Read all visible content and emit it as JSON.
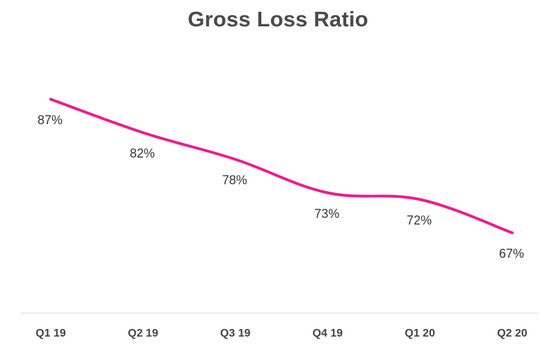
{
  "chart_data": {
    "type": "line",
    "title": "Gross Loss Ratio",
    "xlabel": "",
    "ylabel": "",
    "categories": [
      "Q1 19",
      "Q2 19",
      "Q3 19",
      "Q4 19",
      "Q1 20",
      "Q2 20"
    ],
    "series": [
      {
        "values": [
          87,
          82,
          78,
          73,
          72,
          67
        ],
        "labels": [
          "87%",
          "82%",
          "78%",
          "73%",
          "72%",
          "67%"
        ],
        "color": "#ec1c8e"
      }
    ],
    "ylim": [
      55,
      95
    ],
    "grid": false,
    "legend": "none"
  }
}
